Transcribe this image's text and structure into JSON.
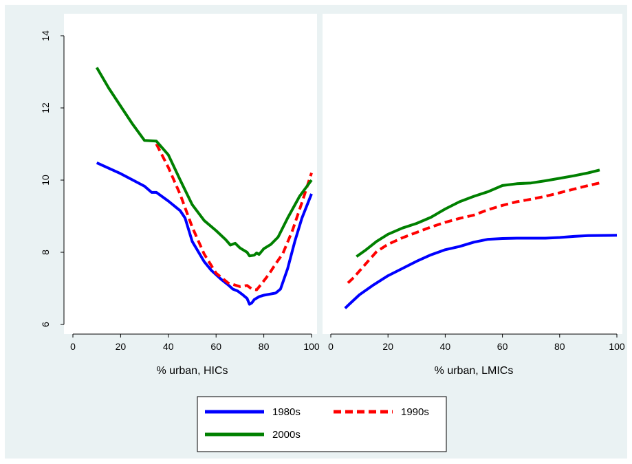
{
  "chart_data": {
    "type": "line",
    "y_tick_labels": [
      "6",
      "8",
      "10",
      "12",
      "14"
    ],
    "legend": {
      "placement": "bottom",
      "entries": [
        {
          "label": "1980s",
          "color": "#0000ff",
          "style": "solid"
        },
        {
          "label": "1990s",
          "color": "#ff0000",
          "style": "dashed"
        },
        {
          "label": "2000s",
          "color": "#008000",
          "style": "solid"
        }
      ]
    },
    "panels": [
      {
        "xlabel": "% urban, HICs",
        "xlim": [
          0,
          100
        ],
        "ylim": [
          6,
          14
        ],
        "x_tick_labels": [
          "0",
          "20",
          "40",
          "60",
          "80",
          "100"
        ],
        "series": [
          {
            "name": "1980s",
            "color": "#0000ff",
            "dash": false,
            "points": [
              [
                10,
                10.48
              ],
              [
                20,
                10.18
              ],
              [
                30,
                9.83
              ],
              [
                33,
                9.66
              ],
              [
                35,
                9.66
              ],
              [
                40,
                9.42
              ],
              [
                45,
                9.15
              ],
              [
                47,
                8.95
              ],
              [
                50,
                8.3
              ],
              [
                55,
                7.74
              ],
              [
                58,
                7.5
              ],
              [
                62,
                7.26
              ],
              [
                65,
                7.1
              ],
              [
                67,
                6.98
              ],
              [
                69,
                6.93
              ],
              [
                71,
                6.83
              ],
              [
                73,
                6.72
              ],
              [
                74,
                6.56
              ],
              [
                75,
                6.6
              ],
              [
                76,
                6.69
              ],
              [
                78,
                6.77
              ],
              [
                80,
                6.81
              ],
              [
                85,
                6.87
              ],
              [
                87,
                6.98
              ],
              [
                90,
                7.55
              ],
              [
                93,
                8.3
              ],
              [
                96,
                8.95
              ],
              [
                100,
                9.62
              ]
            ]
          },
          {
            "name": "1990s",
            "color": "#ff0000",
            "dash": true,
            "points": [
              [
                35,
                11.0
              ],
              [
                40,
                10.35
              ],
              [
                45,
                9.6
              ],
              [
                50,
                8.7
              ],
              [
                55,
                7.95
              ],
              [
                60,
                7.42
              ],
              [
                65,
                7.15
              ],
              [
                70,
                7.05
              ],
              [
                73,
                7.08
              ],
              [
                75,
                6.98
              ],
              [
                77,
                6.96
              ],
              [
                79,
                7.12
              ],
              [
                82,
                7.38
              ],
              [
                85,
                7.68
              ],
              [
                88,
                7.97
              ],
              [
                92,
                8.6
              ],
              [
                96,
                9.38
              ],
              [
                100,
                10.2
              ]
            ]
          },
          {
            "name": "2000s",
            "color": "#008000",
            "dash": false,
            "points": [
              [
                10,
                13.12
              ],
              [
                15,
                12.55
              ],
              [
                20,
                12.05
              ],
              [
                25,
                11.55
              ],
              [
                30,
                11.1
              ],
              [
                35,
                11.08
              ],
              [
                40,
                10.7
              ],
              [
                45,
                10.0
              ],
              [
                50,
                9.32
              ],
              [
                55,
                8.88
              ],
              [
                60,
                8.6
              ],
              [
                64,
                8.35
              ],
              [
                66,
                8.2
              ],
              [
                68,
                8.25
              ],
              [
                70,
                8.12
              ],
              [
                73,
                8.0
              ],
              [
                74,
                7.9
              ],
              [
                76,
                7.92
              ],
              [
                77,
                7.98
              ],
              [
                78,
                7.94
              ],
              [
                80,
                8.1
              ],
              [
                83,
                8.22
              ],
              [
                86,
                8.42
              ],
              [
                90,
                8.95
              ],
              [
                95,
                9.55
              ],
              [
                100,
                10.0
              ]
            ]
          }
        ]
      },
      {
        "xlabel": "% urban, LMICs",
        "xlim": [
          0,
          100
        ],
        "ylim": [
          6,
          14
        ],
        "x_tick_labels": [
          "0",
          "20",
          "40",
          "60",
          "80",
          "100"
        ],
        "series": [
          {
            "name": "1980s",
            "color": "#0000ff",
            "dash": false,
            "points": [
              [
                5,
                6.45
              ],
              [
                7,
                6.6
              ],
              [
                10,
                6.82
              ],
              [
                15,
                7.1
              ],
              [
                20,
                7.35
              ],
              [
                25,
                7.55
              ],
              [
                30,
                7.75
              ],
              [
                35,
                7.93
              ],
              [
                40,
                8.07
              ],
              [
                45,
                8.16
              ],
              [
                50,
                8.28
              ],
              [
                55,
                8.36
              ],
              [
                60,
                8.38
              ],
              [
                65,
                8.39
              ],
              [
                70,
                8.39
              ],
              [
                75,
                8.39
              ],
              [
                80,
                8.41
              ],
              [
                85,
                8.44
              ],
              [
                90,
                8.46
              ],
              [
                100,
                8.47
              ]
            ]
          },
          {
            "name": "1990s",
            "color": "#ff0000",
            "dash": true,
            "points": [
              [
                6,
                7.15
              ],
              [
                8,
                7.3
              ],
              [
                10,
                7.48
              ],
              [
                13,
                7.75
              ],
              [
                16,
                8.02
              ],
              [
                20,
                8.22
              ],
              [
                25,
                8.4
              ],
              [
                30,
                8.55
              ],
              [
                35,
                8.7
              ],
              [
                40,
                8.83
              ],
              [
                45,
                8.94
              ],
              [
                50,
                9.03
              ],
              [
                55,
                9.18
              ],
              [
                60,
                9.3
              ],
              [
                65,
                9.4
              ],
              [
                70,
                9.47
              ],
              [
                75,
                9.55
              ],
              [
                80,
                9.65
              ],
              [
                85,
                9.75
              ],
              [
                90,
                9.85
              ],
              [
                94,
                9.92
              ]
            ]
          },
          {
            "name": "2000s",
            "color": "#008000",
            "dash": false,
            "points": [
              [
                9,
                7.88
              ],
              [
                12,
                8.05
              ],
              [
                16,
                8.3
              ],
              [
                20,
                8.5
              ],
              [
                25,
                8.67
              ],
              [
                30,
                8.8
              ],
              [
                35,
                8.97
              ],
              [
                40,
                9.2
              ],
              [
                45,
                9.4
              ],
              [
                50,
                9.55
              ],
              [
                55,
                9.68
              ],
              [
                60,
                9.85
              ],
              [
                65,
                9.9
              ],
              [
                70,
                9.92
              ],
              [
                75,
                9.98
              ],
              [
                80,
                10.05
              ],
              [
                85,
                10.12
              ],
              [
                90,
                10.2
              ],
              [
                94,
                10.28
              ]
            ]
          }
        ]
      }
    ]
  }
}
